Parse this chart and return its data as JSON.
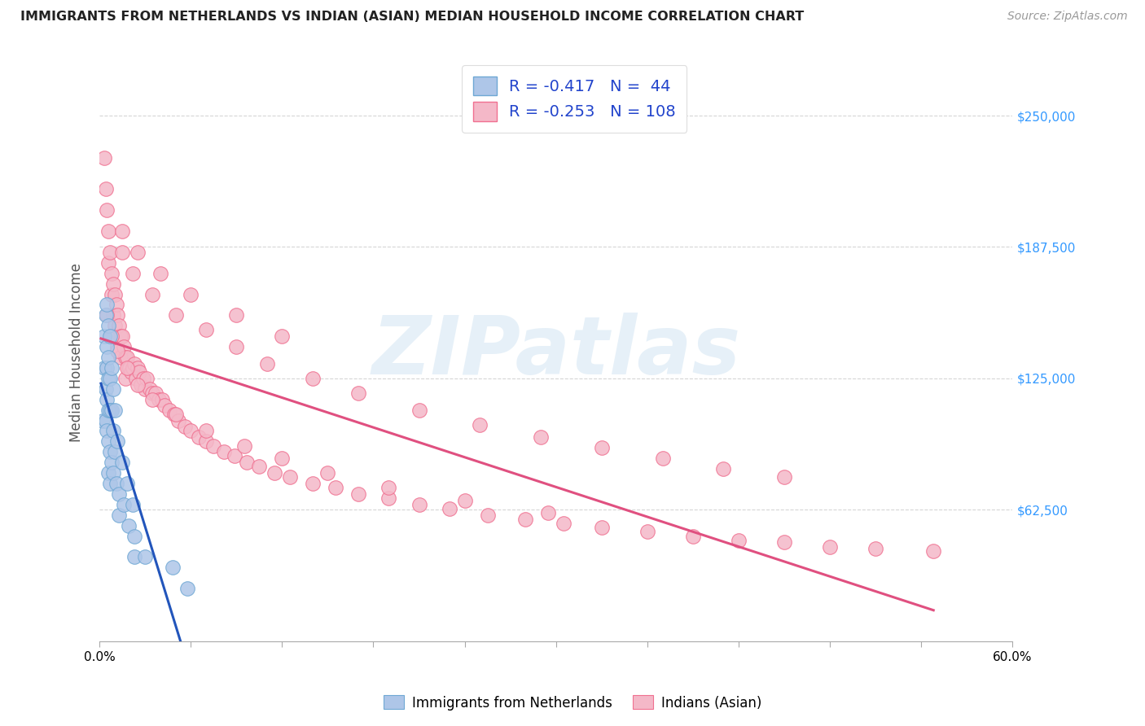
{
  "title": "IMMIGRANTS FROM NETHERLANDS VS INDIAN (ASIAN) MEDIAN HOUSEHOLD INCOME CORRELATION CHART",
  "source": "Source: ZipAtlas.com",
  "ylabel": "Median Household Income",
  "yticks": [
    62500,
    125000,
    187500,
    250000
  ],
  "ytick_labels": [
    "$62,500",
    "$125,000",
    "$187,500",
    "$250,000"
  ],
  "xlim": [
    0.0,
    0.6
  ],
  "ylim": [
    0,
    275000
  ],
  "legend_netherlands": {
    "R": -0.417,
    "N": 44
  },
  "legend_indian": {
    "R": -0.253,
    "N": 108
  },
  "netherlands_color": "#aec6e8",
  "indian_color": "#f4b8c8",
  "netherlands_edge": "#6fa8d4",
  "indian_edge": "#f07090",
  "trendline_netherlands_color": "#2255bb",
  "trendline_indian_color": "#e05080",
  "trendline_extrap_color": "#aaaacc",
  "watermark": "ZIPatlas",
  "nl_x": [
    0.002,
    0.003,
    0.003,
    0.004,
    0.004,
    0.004,
    0.005,
    0.005,
    0.005,
    0.005,
    0.005,
    0.006,
    0.006,
    0.006,
    0.006,
    0.006,
    0.006,
    0.007,
    0.007,
    0.007,
    0.007,
    0.007,
    0.008,
    0.008,
    0.008,
    0.009,
    0.009,
    0.009,
    0.01,
    0.01,
    0.011,
    0.012,
    0.013,
    0.013,
    0.015,
    0.016,
    0.018,
    0.019,
    0.022,
    0.023,
    0.023,
    0.03,
    0.048,
    0.058
  ],
  "nl_y": [
    105000,
    145000,
    130000,
    155000,
    120000,
    105000,
    160000,
    140000,
    130000,
    115000,
    100000,
    150000,
    135000,
    125000,
    110000,
    95000,
    80000,
    145000,
    125000,
    110000,
    90000,
    75000,
    130000,
    110000,
    85000,
    120000,
    100000,
    80000,
    110000,
    90000,
    75000,
    95000,
    70000,
    60000,
    85000,
    65000,
    75000,
    55000,
    65000,
    50000,
    40000,
    40000,
    35000,
    25000
  ],
  "ind_x": [
    0.003,
    0.004,
    0.005,
    0.006,
    0.006,
    0.007,
    0.008,
    0.008,
    0.009,
    0.009,
    0.01,
    0.01,
    0.011,
    0.012,
    0.012,
    0.013,
    0.014,
    0.014,
    0.015,
    0.016,
    0.017,
    0.017,
    0.018,
    0.019,
    0.02,
    0.021,
    0.022,
    0.023,
    0.024,
    0.025,
    0.026,
    0.027,
    0.029,
    0.03,
    0.031,
    0.033,
    0.035,
    0.037,
    0.039,
    0.041,
    0.043,
    0.046,
    0.049,
    0.052,
    0.056,
    0.06,
    0.065,
    0.07,
    0.075,
    0.082,
    0.089,
    0.097,
    0.105,
    0.115,
    0.125,
    0.14,
    0.155,
    0.17,
    0.19,
    0.21,
    0.23,
    0.255,
    0.28,
    0.305,
    0.33,
    0.36,
    0.39,
    0.42,
    0.45,
    0.48,
    0.51,
    0.548,
    0.015,
    0.022,
    0.035,
    0.05,
    0.07,
    0.09,
    0.11,
    0.14,
    0.17,
    0.21,
    0.25,
    0.29,
    0.33,
    0.37,
    0.41,
    0.45,
    0.005,
    0.008,
    0.012,
    0.018,
    0.025,
    0.035,
    0.05,
    0.07,
    0.095,
    0.12,
    0.15,
    0.19,
    0.24,
    0.295,
    0.015,
    0.025,
    0.04,
    0.06,
    0.09,
    0.12
  ],
  "ind_y": [
    230000,
    215000,
    205000,
    195000,
    180000,
    185000,
    175000,
    165000,
    170000,
    155000,
    165000,
    150000,
    160000,
    155000,
    140000,
    150000,
    145000,
    135000,
    145000,
    140000,
    135000,
    125000,
    135000,
    130000,
    130000,
    128000,
    130000,
    132000,
    125000,
    130000,
    128000,
    122000,
    125000,
    120000,
    125000,
    120000,
    118000,
    118000,
    115000,
    115000,
    112000,
    110000,
    108000,
    105000,
    102000,
    100000,
    97000,
    95000,
    93000,
    90000,
    88000,
    85000,
    83000,
    80000,
    78000,
    75000,
    73000,
    70000,
    68000,
    65000,
    63000,
    60000,
    58000,
    56000,
    54000,
    52000,
    50000,
    48000,
    47000,
    45000,
    44000,
    43000,
    185000,
    175000,
    165000,
    155000,
    148000,
    140000,
    132000,
    125000,
    118000,
    110000,
    103000,
    97000,
    92000,
    87000,
    82000,
    78000,
    155000,
    145000,
    138000,
    130000,
    122000,
    115000,
    108000,
    100000,
    93000,
    87000,
    80000,
    73000,
    67000,
    61000,
    195000,
    185000,
    175000,
    165000,
    155000,
    145000
  ]
}
